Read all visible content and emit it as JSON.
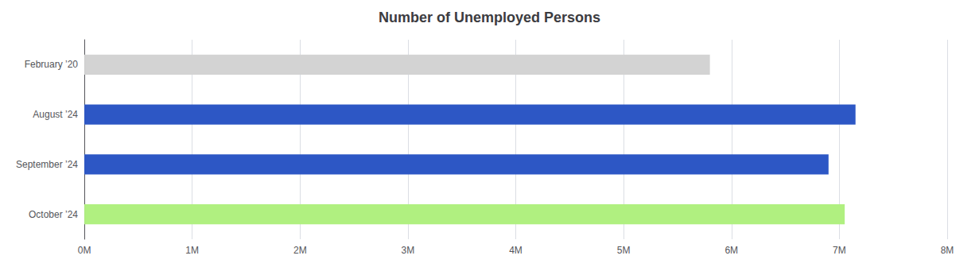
{
  "chart_data": {
    "type": "bar",
    "orientation": "horizontal",
    "title": "Number of Unemployed Persons",
    "categories": [
      "February ’20",
      "August ’24",
      "September ’24",
      "October ’24"
    ],
    "values": [
      5800000,
      7150000,
      6900000,
      7050000
    ],
    "colors": [
      "#d3d3d3",
      "#2d57c5",
      "#2d57c5",
      "#b0f080"
    ],
    "xlim": [
      0,
      8000000
    ],
    "xticks": [
      {
        "value": 0,
        "label": "0M"
      },
      {
        "value": 1000000,
        "label": "1M"
      },
      {
        "value": 2000000,
        "label": "2M"
      },
      {
        "value": 3000000,
        "label": "3M"
      },
      {
        "value": 4000000,
        "label": "4M"
      },
      {
        "value": 5000000,
        "label": "5M"
      },
      {
        "value": 6000000,
        "label": "6M"
      },
      {
        "value": 7000000,
        "label": "7M"
      },
      {
        "value": 8000000,
        "label": "8M"
      }
    ],
    "grid": true
  }
}
